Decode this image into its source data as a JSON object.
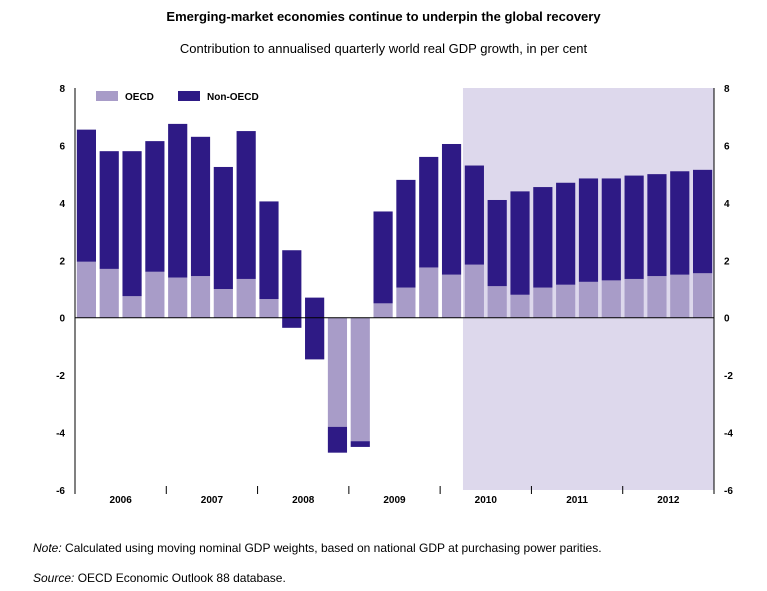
{
  "chart_data": {
    "type": "bar",
    "stacked": true,
    "title": "Emerging-market economies continue to underpin the global recovery",
    "subtitle": "Contribution to annualised quarterly world real GDP growth, in per cent",
    "ylim": [
      -6,
      8
    ],
    "yticks": [
      "8",
      "6",
      "4",
      "2",
      "0",
      "-2",
      "-4",
      "-6"
    ],
    "years": [
      "2006",
      "2007",
      "2008",
      "2009",
      "2010",
      "2011",
      "2012"
    ],
    "categories": [
      "2006Q1",
      "2006Q2",
      "2006Q3",
      "2006Q4",
      "2007Q1",
      "2007Q2",
      "2007Q3",
      "2007Q4",
      "2008Q1",
      "2008Q2",
      "2008Q3",
      "2008Q4",
      "2009Q1",
      "2009Q2",
      "2009Q3",
      "2009Q4",
      "2010Q1",
      "2010Q2",
      "2010Q3",
      "2010Q4",
      "2011Q1",
      "2011Q2",
      "2011Q3",
      "2011Q4",
      "2012Q1",
      "2012Q2",
      "2012Q3",
      "2012Q4"
    ],
    "series": [
      {
        "name": "OECD",
        "color": "#a89cc8",
        "values": [
          1.95,
          1.7,
          0.75,
          1.6,
          1.4,
          1.45,
          1.0,
          1.35,
          0.65,
          -0.35,
          -1.45,
          -3.8,
          -4.3,
          0.5,
          1.05,
          1.75,
          1.5,
          1.85,
          1.1,
          0.8,
          1.05,
          1.15,
          1.25,
          1.3,
          1.35,
          1.45,
          1.5,
          1.55
        ]
      },
      {
        "name": "Non-OECD",
        "color": "#2e1a85",
        "values": [
          4.6,
          4.1,
          5.05,
          4.55,
          5.35,
          4.85,
          4.25,
          5.15,
          3.4,
          2.7,
          2.15,
          -0.9,
          -0.2,
          3.2,
          3.75,
          3.85,
          4.55,
          3.45,
          3.0,
          3.6,
          3.5,
          3.55,
          3.6,
          3.55,
          3.6,
          3.55,
          3.6,
          3.6
        ]
      }
    ],
    "forecast_shading": {
      "from": "2010Q2",
      "color": "#ddd8ec"
    },
    "legend_position": "top-left",
    "grid": false
  },
  "note_label": "Note:",
  "note_text": "Calculated using moving nominal GDP weights, based on national GDP at purchasing power parities.",
  "source_label": "Source:",
  "source_text": "OECD Economic Outlook 88 database."
}
